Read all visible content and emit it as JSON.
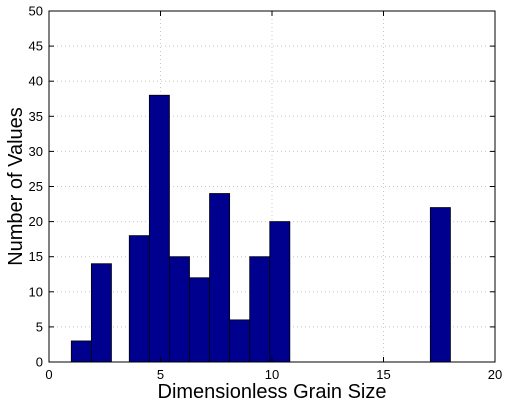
{
  "chart_data": {
    "type": "bar",
    "title": "",
    "xlabel": "Dimensionless Grain Size",
    "ylabel": "Number of Values",
    "xlim": [
      0,
      20
    ],
    "ylim": [
      0,
      50
    ],
    "xticks": [
      0,
      5,
      10,
      15,
      20
    ],
    "yticks": [
      0,
      5,
      10,
      15,
      20,
      25,
      30,
      35,
      40,
      45,
      50
    ],
    "grid": true,
    "bar_color": "#00008f",
    "bins": [
      {
        "x0": 1.0,
        "x1": 1.9,
        "value": 3
      },
      {
        "x0": 1.9,
        "x1": 2.8,
        "value": 14
      },
      {
        "x0": 3.6,
        "x1": 4.5,
        "value": 18
      },
      {
        "x0": 4.5,
        "x1": 5.4,
        "value": 38
      },
      {
        "x0": 5.4,
        "x1": 6.3,
        "value": 15
      },
      {
        "x0": 6.3,
        "x1": 7.2,
        "value": 12
      },
      {
        "x0": 7.2,
        "x1": 8.1,
        "value": 24
      },
      {
        "x0": 8.1,
        "x1": 9.0,
        "value": 6
      },
      {
        "x0": 9.0,
        "x1": 9.9,
        "value": 15
      },
      {
        "x0": 9.9,
        "x1": 10.8,
        "value": 20
      },
      {
        "x0": 17.1,
        "x1": 18.0,
        "value": 22
      }
    ]
  }
}
